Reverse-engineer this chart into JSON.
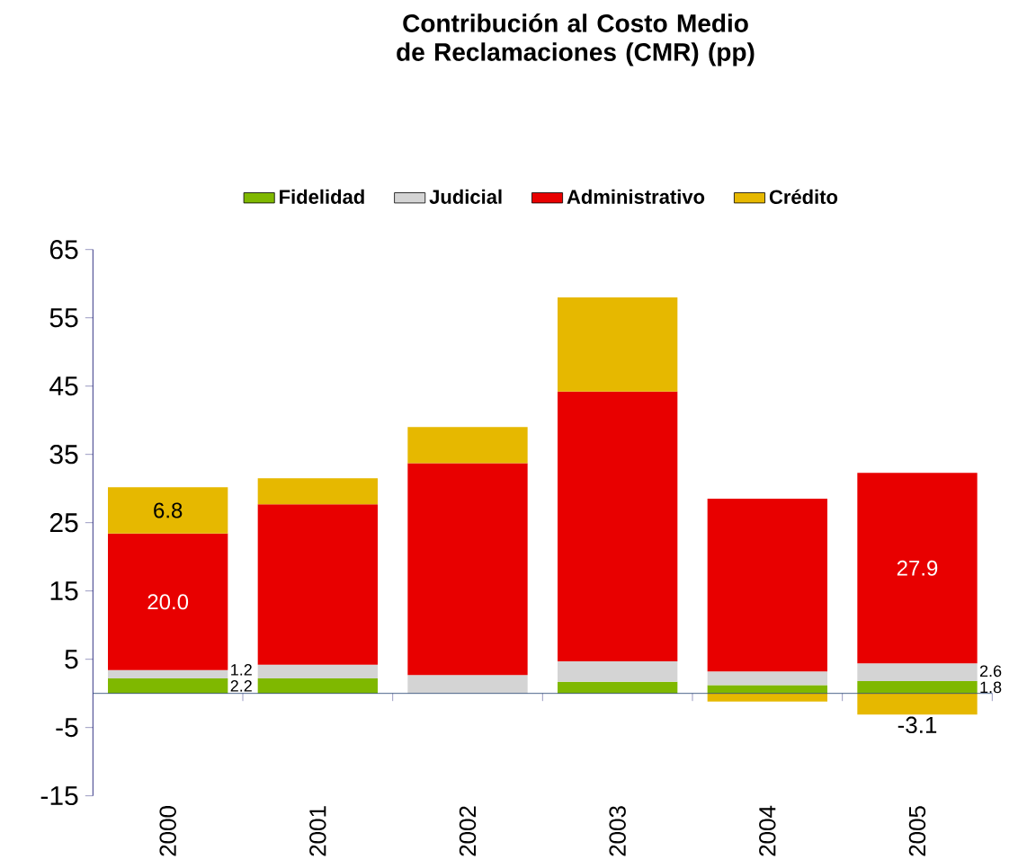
{
  "chart_data": {
    "type": "bar",
    "stacked": true,
    "title": "Contribución al Costo Medio de Reclamaciones (CMR) (pp)",
    "categories": [
      "2000",
      "2001",
      "2002",
      "2003",
      "2004",
      "2005"
    ],
    "series": [
      {
        "name": "Fidelidad",
        "color": "#7fb800",
        "values": [
          2.2,
          2.2,
          0,
          1.7,
          1.2,
          1.8
        ],
        "value_labels": [
          "2.2",
          null,
          null,
          null,
          null,
          "1.8"
        ]
      },
      {
        "name": "Judicial",
        "color": "#d4d4d4",
        "values": [
          1.2,
          2.0,
          2.7,
          3.0,
          2.0,
          2.6
        ],
        "value_labels": [
          "1.2",
          null,
          null,
          null,
          null,
          "2.6"
        ]
      },
      {
        "name": "Administrativo",
        "color": "#e80000",
        "values": [
          20.0,
          23.5,
          31.0,
          39.5,
          25.3,
          27.9
        ],
        "value_labels": [
          "20.0",
          null,
          null,
          null,
          null,
          "27.9"
        ]
      },
      {
        "name": "Crédito",
        "color": "#e6b800",
        "values": [
          6.8,
          3.8,
          5.3,
          13.8,
          -1.2,
          -3.1
        ],
        "value_labels": [
          "6.8",
          null,
          null,
          null,
          null,
          "-3.1"
        ]
      }
    ],
    "ref_lines": [
      {
        "axis": "y",
        "value": 0,
        "color": "#1f3f6f"
      }
    ],
    "ylim": [
      -15,
      65
    ],
    "yticks": [
      -15,
      -5,
      5,
      15,
      25,
      35,
      45,
      55,
      65
    ],
    "grid": false,
    "legend": "top"
  }
}
